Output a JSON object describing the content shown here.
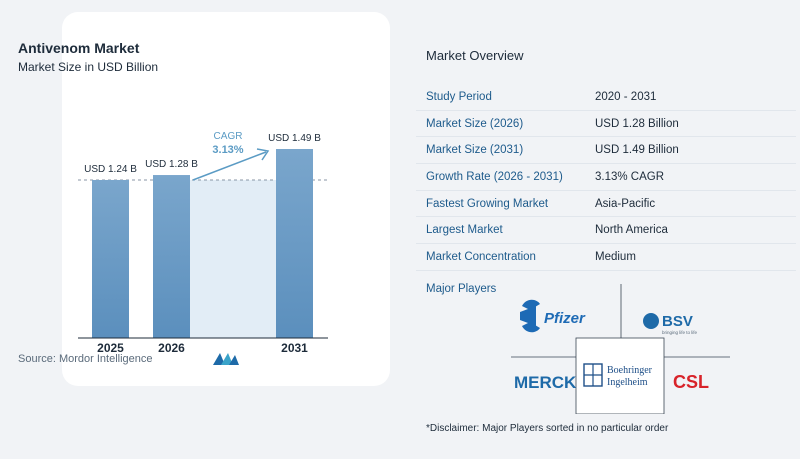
{
  "chart_data": {
    "type": "bar",
    "title": "Antivenom Market",
    "subtitle": "Market Size in USD Billion",
    "categories": [
      "2025",
      "2026",
      "2031"
    ],
    "values": [
      1.24,
      1.28,
      1.49
    ],
    "value_labels": [
      "USD 1.24 B",
      "USD 1.28 B",
      "USD 1.49 B"
    ],
    "cagr_label": "CAGR",
    "cagr_value": "3.13%",
    "colors": {
      "bar": "#5b8fbd",
      "bar_top": "#7aa6cc",
      "band": "#e2edf6",
      "arrow": "#5b9bc4",
      "dashed": "#8896a5"
    }
  },
  "source": "Source:  Mordor Intelligence",
  "overview": {
    "title": "Market Overview",
    "rows": [
      {
        "key": "Study Period",
        "value": "2020 - 2031"
      },
      {
        "key": "Market Size (2026)",
        "value": "USD 1.28 Billion"
      },
      {
        "key": "Market Size (2031)",
        "value": "USD 1.49 Billion"
      },
      {
        "key": "Growth Rate (2026 - 2031)",
        "value": "3.13% CAGR"
      },
      {
        "key": "Fastest Growing Market",
        "value": "Asia-Pacific"
      },
      {
        "key": "Largest Market",
        "value": "North America"
      },
      {
        "key": "Market Concentration",
        "value": "Medium"
      }
    ],
    "players_title": "Major Players",
    "players": {
      "pfizer": "Pfizer",
      "bsv": "BSV",
      "bsv_tagline": "bringing life to life",
      "merck": "MERCK",
      "boehringer_1": "Boehringer",
      "boehringer_2": "Ingelheim",
      "csl": "CSL"
    },
    "disclaimer": "*Disclaimer: Major Players sorted in no particular order"
  }
}
